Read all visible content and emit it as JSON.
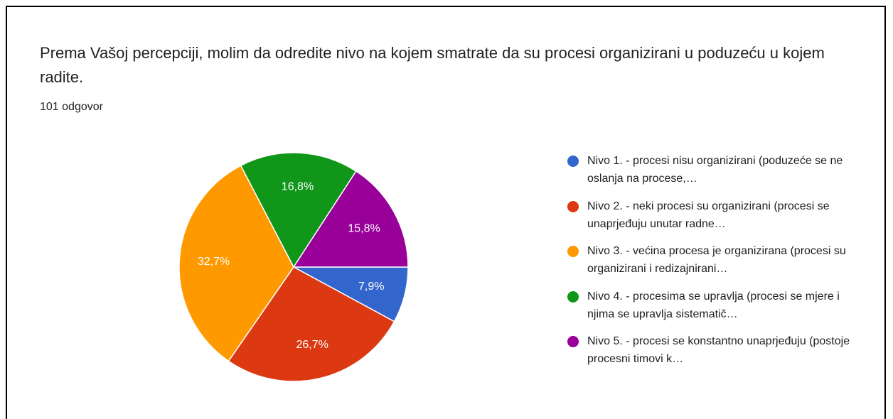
{
  "chart_data": {
    "type": "pie",
    "title": "Prema Vašoj percepciji, molim da odredite nivo na kojem smatrate da su procesi organizirani u poduzeću u kojem radite.",
    "subtitle": "101 odgovor",
    "categories": [
      "Nivo 1. - procesi nisu organizirani (poduzeće se ne oslanja na procese,…",
      "Nivo 2. - neki procesi su organizirani (procesi se unaprjeđuju unutar radne…",
      "Nivo 3. - većina procesa je organizirana (procesi su organizirani i redizajnirani…",
      "Nivo 4. - procesima se upravlja (procesi se mjere i njima se upravlja sistematič…",
      "Nivo 5. - procesi se konstantno unaprjeđuju (postoje procesni timovi k…"
    ],
    "values": [
      7.9,
      26.7,
      32.7,
      16.8,
      15.8
    ],
    "value_labels": [
      "7,9%",
      "26,7%",
      "32,7%",
      "16,8%",
      "15,8%"
    ],
    "colors": [
      "#3366cc",
      "#dc3912",
      "#ff9900",
      "#109618",
      "#990099"
    ],
    "legend": "right"
  }
}
